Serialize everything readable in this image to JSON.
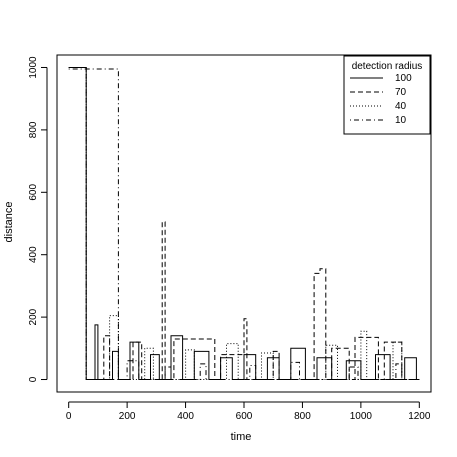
{
  "chart_data": {
    "type": "line",
    "title": "",
    "xlabel": "time",
    "ylabel": "distance",
    "xlim": [
      -40,
      1240
    ],
    "ylim": [
      -40,
      1040
    ],
    "x_ticks": [
      0,
      200,
      400,
      600,
      800,
      1000,
      1200
    ],
    "y_ticks": [
      0,
      200,
      400,
      600,
      800,
      1000
    ],
    "x_tick_labels": [
      "0",
      "200",
      "400",
      "600",
      "800",
      "1000",
      "1200"
    ],
    "y_tick_labels": [
      "0",
      "200",
      "400",
      "600",
      "800",
      "1000"
    ],
    "grid": false,
    "legend": {
      "title": "detection radius",
      "position": "top-right",
      "entries": [
        "100",
        "70",
        "40",
        "10"
      ]
    },
    "series": [
      {
        "name": "100",
        "dash": "solid",
        "x": [
          0,
          60,
          60,
          90,
          90,
          100,
          100,
          150,
          150,
          170,
          170,
          210,
          210,
          240,
          240,
          280,
          280,
          310,
          310,
          350,
          350,
          390,
          390,
          430,
          430,
          480,
          480,
          520,
          520,
          560,
          560,
          600,
          600,
          640,
          640,
          680,
          680,
          720,
          720,
          760,
          760,
          810,
          810,
          850,
          850,
          900,
          900,
          950,
          950,
          1000,
          1000,
          1050,
          1050,
          1100,
          1100,
          1150,
          1150,
          1190,
          1190,
          1200
        ],
        "y": [
          1000,
          1000,
          0,
          0,
          175,
          175,
          0,
          0,
          90,
          90,
          0,
          0,
          120,
          120,
          0,
          0,
          80,
          80,
          0,
          0,
          140,
          140,
          0,
          0,
          90,
          90,
          0,
          0,
          70,
          70,
          0,
          0,
          80,
          80,
          0,
          0,
          70,
          70,
          0,
          0,
          100,
          100,
          0,
          0,
          70,
          70,
          0,
          0,
          60,
          60,
          0,
          0,
          80,
          80,
          0,
          0,
          70,
          70,
          0,
          0
        ]
      },
      {
        "name": "70",
        "dash": "dashed",
        "x": [
          0,
          60,
          60,
          120,
          120,
          140,
          140,
          220,
          220,
          250,
          250,
          320,
          320,
          330,
          330,
          360,
          360,
          500,
          500,
          520,
          520,
          600,
          600,
          610,
          610,
          700,
          700,
          720,
          720,
          840,
          840,
          860,
          860,
          880,
          880,
          900,
          900,
          960,
          960,
          980,
          980,
          1060,
          1060,
          1080,
          1080,
          1140,
          1140,
          1160,
          1160,
          1200
        ],
        "y": [
          1000,
          1000,
          0,
          0,
          140,
          140,
          0,
          0,
          120,
          120,
          0,
          0,
          505,
          505,
          0,
          0,
          130,
          130,
          0,
          0,
          80,
          80,
          195,
          195,
          0,
          0,
          90,
          90,
          0,
          0,
          340,
          340,
          355,
          355,
          0,
          0,
          100,
          100,
          0,
          0,
          135,
          135,
          0,
          0,
          120,
          120,
          0,
          0,
          0,
          0
        ]
      },
      {
        "name": "40",
        "dash": "dotted",
        "x": [
          0,
          60,
          60,
          140,
          140,
          170,
          170,
          260,
          260,
          290,
          290,
          400,
          400,
          430,
          430,
          540,
          540,
          580,
          580,
          660,
          660,
          700,
          700,
          880,
          880,
          920,
          920,
          1000,
          1000,
          1020,
          1020,
          1110,
          1110,
          1140,
          1140,
          1200
        ],
        "y": [
          1000,
          1000,
          0,
          0,
          205,
          205,
          0,
          0,
          100,
          100,
          0,
          0,
          95,
          95,
          0,
          0,
          115,
          115,
          0,
          0,
          85,
          85,
          0,
          0,
          110,
          110,
          0,
          0,
          155,
          155,
          0,
          0,
          120,
          120,
          0,
          0
        ]
      },
      {
        "name": "10",
        "dash": "dotdash",
        "x": [
          0,
          170,
          170,
          200,
          200,
          240,
          240,
          330,
          330,
          350,
          350,
          450,
          450,
          470,
          470,
          620,
          620,
          640,
          640,
          760,
          760,
          790,
          790,
          960,
          960,
          990,
          990,
          1120,
          1120,
          1140,
          1140,
          1200
        ],
        "y": [
          995,
          995,
          0,
          0,
          60,
          60,
          0,
          0,
          40,
          40,
          0,
          0,
          50,
          50,
          0,
          0,
          45,
          45,
          0,
          0,
          55,
          55,
          0,
          0,
          40,
          40,
          0,
          0,
          50,
          50,
          0,
          0
        ]
      }
    ]
  }
}
